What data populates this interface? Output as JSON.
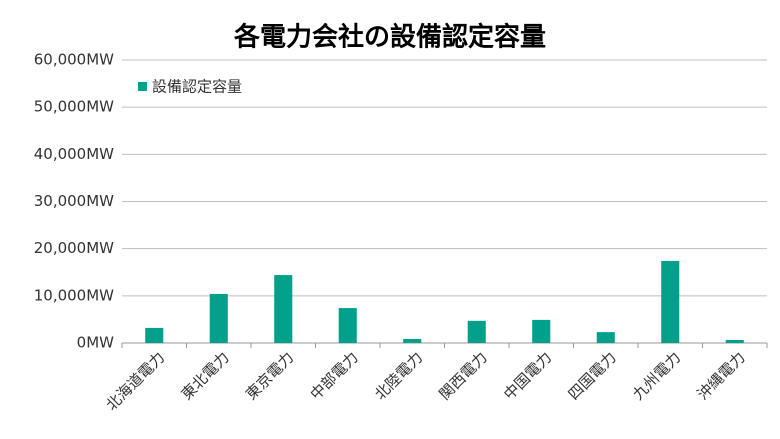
{
  "chart_data": {
    "type": "bar",
    "title": "各電力会社の設備認定容量",
    "categories": [
      "北海道電力",
      "東北電力",
      "東京電力",
      "中部電力",
      "北陸電力",
      "関西電力",
      "中国電力",
      "四国電力",
      "九州電力",
      "沖縄電力"
    ],
    "series": [
      {
        "name": "設備認定容量",
        "color": "#00a08a",
        "values": [
          3200,
          10400,
          14400,
          7400,
          850,
          4700,
          4900,
          2300,
          17400,
          650
        ]
      }
    ],
    "ylim": [
      0,
      60000
    ],
    "yticks": [
      {
        "value": 0,
        "label": "0MW"
      },
      {
        "value": 10000,
        "label": "10,000MW"
      },
      {
        "value": 20000,
        "label": "20,000MW"
      },
      {
        "value": 30000,
        "label": "30,000MW"
      },
      {
        "value": 40000,
        "label": "40,000MW"
      },
      {
        "value": 50000,
        "label": "50,000MW"
      },
      {
        "value": 60000,
        "label": "60,000MW"
      }
    ],
    "grid": true,
    "legend": "top-left"
  }
}
